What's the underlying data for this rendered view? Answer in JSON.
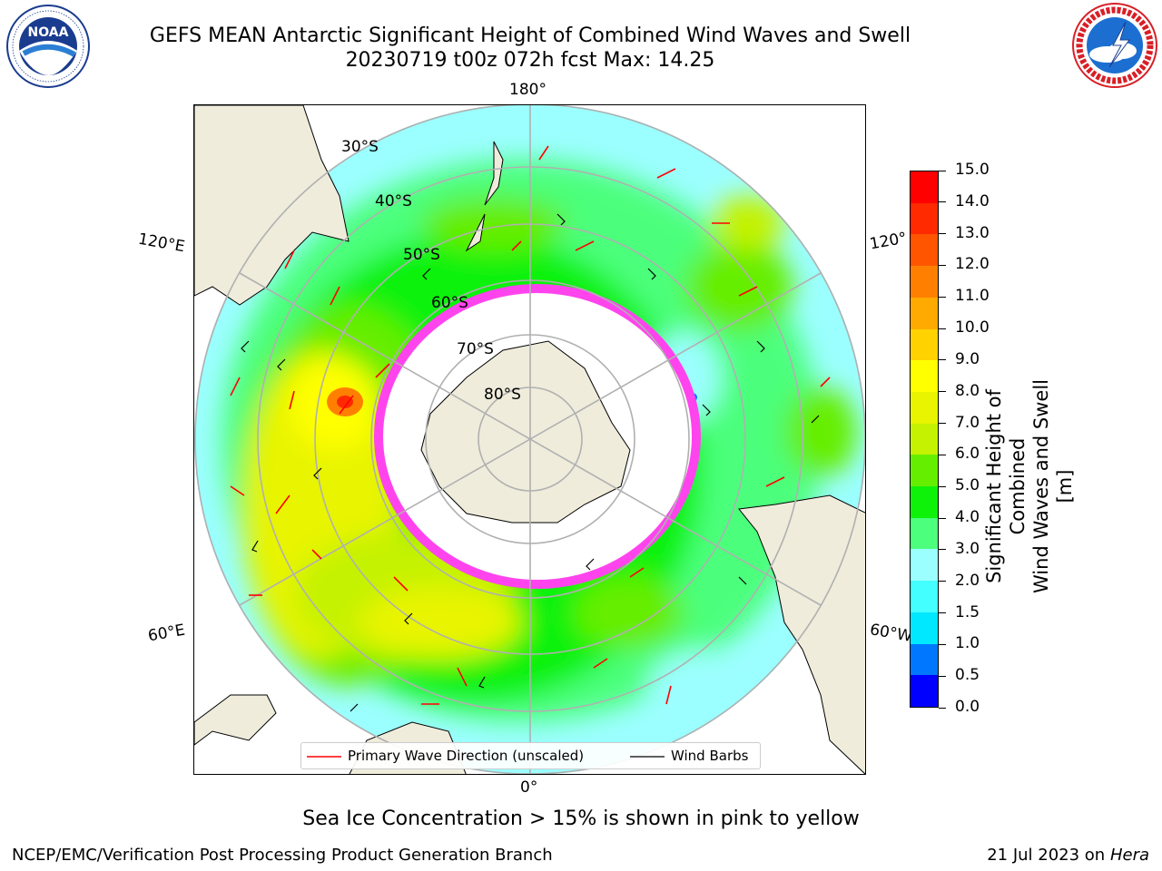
{
  "title": {
    "line1": "GEFS MEAN Antarctic Significant Height of Combined Wind Waves and Swell",
    "line2": "20230719 t00z 072h fcst   Max: 14.25"
  },
  "logos": {
    "left": {
      "name": "NOAA",
      "ring_text": "NATIONAL OCEANIC AND ATMOSPHERIC ADMINISTRATION · U.S. DEPARTMENT OF COMMERCE"
    },
    "right": {
      "name": "NATIONAL WEATHER SERVICE"
    }
  },
  "map": {
    "longitude_labels": {
      "top": "180°",
      "bottom": "0°",
      "left_upper": "120°E",
      "left_lower": "60°E",
      "right_upper": "120°",
      "right_lower": "60°W"
    },
    "latitude_labels": [
      "30°S",
      "40°S",
      "50°S",
      "60°S",
      "70°S",
      "80°S"
    ],
    "colors": {
      "land": "#efecdc",
      "ice": "#ffffff",
      "sea_ice_edge": "#ff44ee",
      "grid": "#b0b0b0",
      "wave_arrow": "#ff0000",
      "wind_barb": "#000000"
    }
  },
  "legend": {
    "wave_direction": "Primary Wave Direction (unscaled)",
    "wind_barbs": "Wind Barbs"
  },
  "colorbar": {
    "label_line1": "Significant Height of Combined",
    "label_line2": "Wind Waves and Swell [m]",
    "ticks": [
      "0.0",
      "0.5",
      "1.0",
      "1.5",
      "2.0",
      "3.0",
      "4.0",
      "5.0",
      "6.0",
      "7.0",
      "8.0",
      "9.0",
      "10.0",
      "11.0",
      "12.0",
      "13.0",
      "14.0",
      "15.0"
    ],
    "colors": [
      "#0000ff",
      "#0077ff",
      "#00e8ff",
      "#44ffff",
      "#9cffff",
      "#4cff7c",
      "#0ef20a",
      "#66ee00",
      "#c4f200",
      "#e8f400",
      "#ffff00",
      "#ffd200",
      "#ffaa00",
      "#ff8000",
      "#ff5500",
      "#ff2a00",
      "#ff0000"
    ]
  },
  "subtitle": "Sea Ice Concentration > 15% is shown in pink to yellow",
  "footer": {
    "left": "NCEP/EMC/Verification Post Processing Product Generation Branch",
    "date": "21 Jul 2023 on ",
    "host": "Hera"
  }
}
